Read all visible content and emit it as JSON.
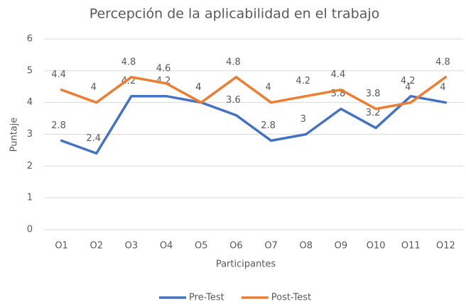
{
  "chart_data": {
    "type": "line",
    "title": "Percepción de la aplicabilidad en el trabajo",
    "x_label": "Participantes",
    "y_label": "Puntaje",
    "categories": [
      "O1",
      "O2",
      "O3",
      "O4",
      "O5",
      "O6",
      "O7",
      "O8",
      "O9",
      "O10",
      "O11",
      "O12"
    ],
    "series": [
      {
        "name": "Pre-Test",
        "color": "#4472c4",
        "values": [
          2.8,
          2.4,
          4.2,
          4.2,
          4,
          3.6,
          2.8,
          3,
          3.8,
          3.2,
          4.2,
          4
        ]
      },
      {
        "name": "Post-Test",
        "color": "#ed7d31",
        "values": [
          4.4,
          4,
          4.8,
          4.6,
          4,
          4.8,
          4,
          4.2,
          4.4,
          3.8,
          4,
          4.8
        ]
      }
    ],
    "ylim": [
      0,
      6
    ],
    "yticks": [
      0,
      1,
      2,
      3,
      4,
      5,
      6
    ],
    "grid": true,
    "legend": "bottom"
  }
}
